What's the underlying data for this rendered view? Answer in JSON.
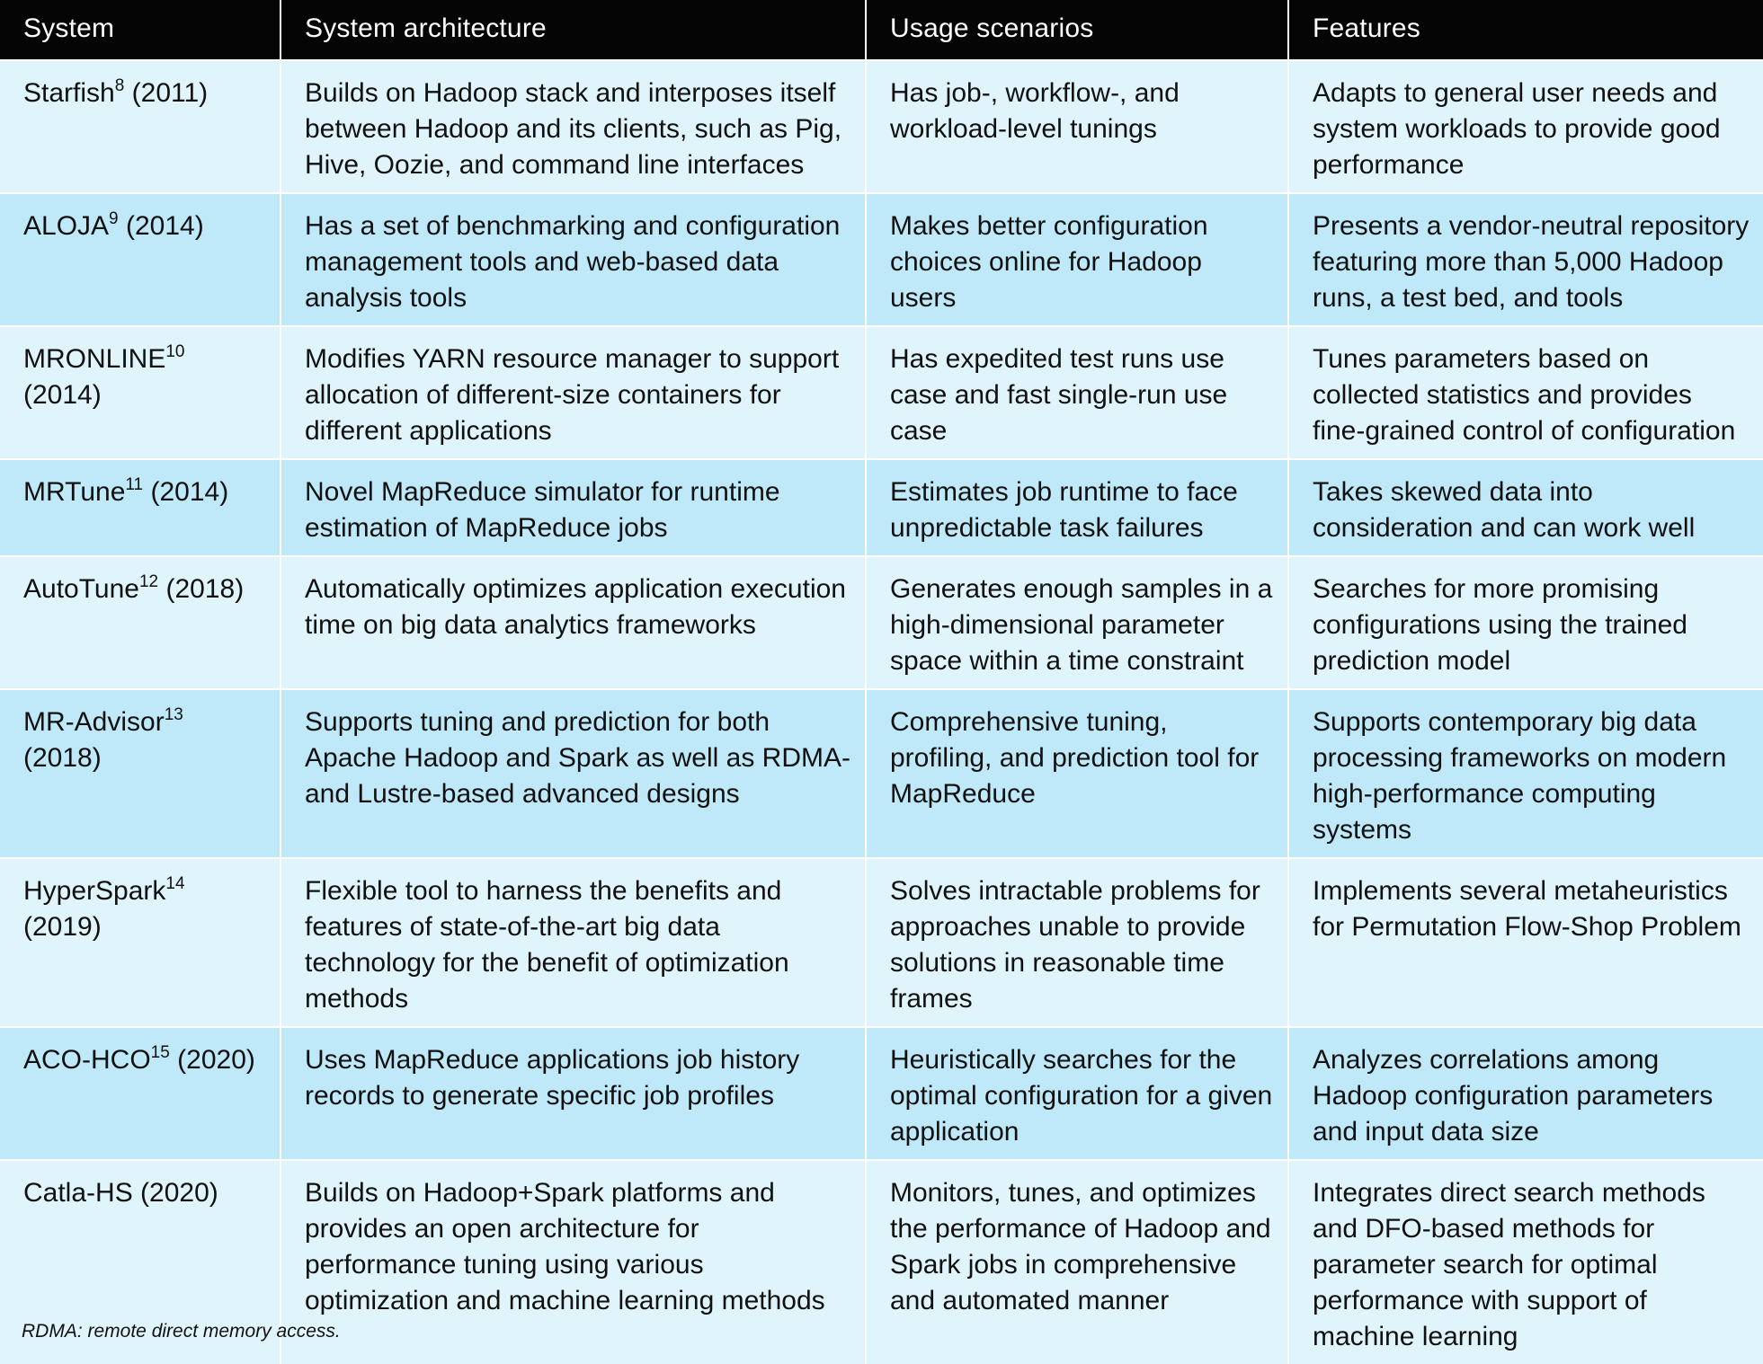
{
  "table": {
    "headers": [
      "System",
      "System architecture",
      "Usage scenarios",
      "Features"
    ],
    "rows": [
      {
        "system": "Starfish",
        "ref": "8",
        "year": "(2011)",
        "architecture": "Builds on Hadoop stack and interposes itself between Hadoop and its clients, such as Pig, Hive, Oozie, and command line interfaces",
        "usage": "Has job-, workflow-, and workload-level tunings",
        "features": "Adapts to general user needs and system workloads to provide good performance"
      },
      {
        "system": "ALOJA",
        "ref": "9",
        "year": "(2014)",
        "architecture": "Has a set of benchmarking and configuration management tools and web-based data analysis tools",
        "usage": "Makes better configuration choices online for Hadoop users",
        "features": "Presents a vendor-neutral repository featuring more than 5,000 Hadoop runs, a test bed, and tools"
      },
      {
        "system": "MRONLINE",
        "ref": "10",
        "year": "(2014)",
        "architecture": "Modifies YARN resource manager to support allocation of different-size containers for different applications",
        "usage": "Has expedited test runs use case and fast single-run use case",
        "features": "Tunes parameters based on collected statistics and provides fine-grained control of configuration"
      },
      {
        "system": "MRTune",
        "ref": "11",
        "year": "(2014)",
        "architecture": "Novel MapReduce simulator for runtime estimation of MapReduce jobs",
        "usage": "Estimates job runtime to face unpredictable task failures",
        "features": "Takes skewed data into consideration and can work well"
      },
      {
        "system": "AutoTune",
        "ref": "12",
        "year": "(2018)",
        "architecture": "Automatically optimizes application execution time on big data analytics frameworks",
        "usage": "Generates enough samples in a high-dimensional parameter space within a time constraint",
        "features": "Searches for more promising configurations using the trained prediction model"
      },
      {
        "system": "MR-Advisor",
        "ref": "13",
        "year": "(2018)",
        "architecture": "Supports tuning and prediction for both Apache Hadoop and Spark as well as RDMA- and Lustre-based advanced designs",
        "usage": "Comprehensive tuning, profiling, and prediction tool for MapReduce",
        "features": "Supports contemporary big data processing frameworks on modern high-performance computing systems"
      },
      {
        "system": "HyperSpark",
        "ref": "14",
        "year": "(2019)",
        "architecture": "Flexible tool to harness the benefits and features of state-of-the-art big data technology for the benefit of optimization methods",
        "usage": "Solves intractable problems for approaches unable to provide solutions in reasonable time frames",
        "features": "Implements several metaheuristics for Permutation Flow-Shop Problem"
      },
      {
        "system": "ACO-HCO",
        "ref": "15",
        "year": "(2020)",
        "architecture": "Uses MapReduce applications job history records to generate specific job profiles",
        "usage": "Heuristically searches for the optimal configuration for a given application",
        "features": "Analyzes correlations among Hadoop configuration parameters and input data size"
      },
      {
        "system": "Catla-HS",
        "ref": "",
        "year": "(2020)",
        "architecture": "Builds on Hadoop+Spark platforms and provides an open architecture for performance tuning using various optimization and machine learning methods",
        "usage": "Monitors, tunes, and optimizes the performance of Hadoop and Spark jobs in comprehensive and automated manner",
        "features": "Integrates direct search methods and DFO-based methods for parameter search for optimal performance with support of machine learning"
      }
    ]
  },
  "footnote": "RDMA: remote direct memory access."
}
